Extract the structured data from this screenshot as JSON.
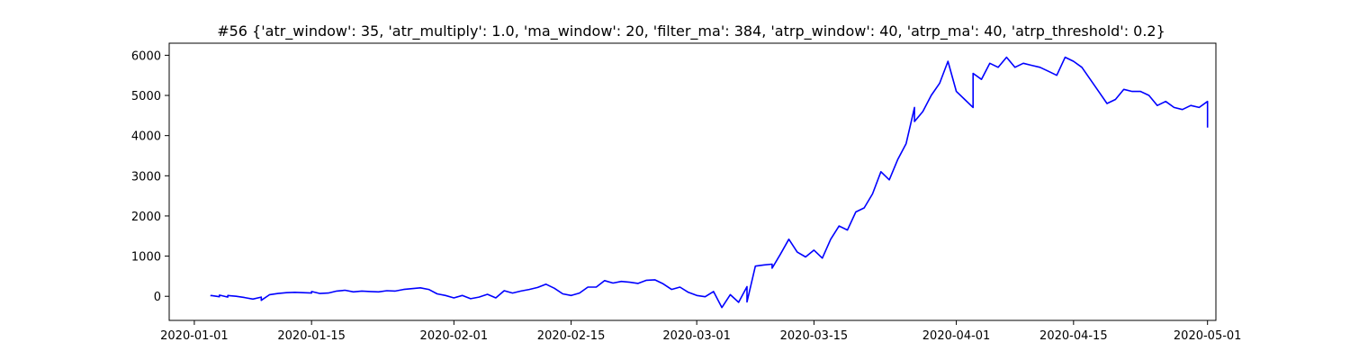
{
  "chart_data": {
    "type": "line",
    "title": "#56 {'atr_window': 35, 'atr_multiply': 1.0, 'ma_window': 20, 'filter_ma': 384, 'atrp_window': 40, 'atrp_ma': 40, 'atrp_threshold': 0.2}",
    "xlabel": "",
    "ylabel": "",
    "x_axis": "date",
    "xlim": [
      "2019-12-29",
      "2020-05-02"
    ],
    "ylim": [
      -600,
      6300
    ],
    "grid": false,
    "xticks": [
      "2020-01-01",
      "2020-01-15",
      "2020-02-01",
      "2020-02-15",
      "2020-03-01",
      "2020-03-15",
      "2020-04-01",
      "2020-04-15",
      "2020-05-01"
    ],
    "yticks": [
      0,
      1000,
      2000,
      3000,
      4000,
      5000,
      6000
    ],
    "series": [
      {
        "color": "#0000ff",
        "points": [
          [
            "2020-01-03",
            0
          ],
          [
            "2020-01-03",
            20
          ],
          [
            "2020-01-04",
            -10
          ],
          [
            "2020-01-04",
            30
          ],
          [
            "2020-01-05",
            -20
          ],
          [
            "2020-01-05",
            20
          ],
          [
            "2020-01-06",
            0
          ],
          [
            "2020-01-07",
            -30
          ],
          [
            "2020-01-08",
            -70
          ],
          [
            "2020-01-09",
            -20
          ],
          [
            "2020-01-09",
            -100
          ],
          [
            "2020-01-10",
            40
          ],
          [
            "2020-01-11",
            70
          ],
          [
            "2020-01-12",
            90
          ],
          [
            "2020-01-13",
            100
          ],
          [
            "2020-01-14",
            90
          ],
          [
            "2020-01-15",
            80
          ],
          [
            "2020-01-15",
            120
          ],
          [
            "2020-01-16",
            70
          ],
          [
            "2020-01-17",
            80
          ],
          [
            "2020-01-18",
            130
          ],
          [
            "2020-01-19",
            150
          ],
          [
            "2020-01-20",
            110
          ],
          [
            "2020-01-21",
            130
          ],
          [
            "2020-01-22",
            120
          ],
          [
            "2020-01-23",
            110
          ],
          [
            "2020-01-24",
            140
          ],
          [
            "2020-01-25",
            130
          ],
          [
            "2020-01-26",
            170
          ],
          [
            "2020-01-27",
            190
          ],
          [
            "2020-01-28",
            210
          ],
          [
            "2020-01-29",
            170
          ],
          [
            "2020-01-30",
            60
          ],
          [
            "2020-01-31",
            20
          ],
          [
            "2020-02-01",
            -40
          ],
          [
            "2020-02-02",
            20
          ],
          [
            "2020-02-03",
            -60
          ],
          [
            "2020-02-04",
            -20
          ],
          [
            "2020-02-05",
            50
          ],
          [
            "2020-02-06",
            -40
          ],
          [
            "2020-02-07",
            140
          ],
          [
            "2020-02-08",
            80
          ],
          [
            "2020-02-09",
            130
          ],
          [
            "2020-02-10",
            170
          ],
          [
            "2020-02-11",
            220
          ],
          [
            "2020-02-12",
            300
          ],
          [
            "2020-02-13",
            200
          ],
          [
            "2020-02-14",
            60
          ],
          [
            "2020-02-15",
            20
          ],
          [
            "2020-02-16",
            80
          ],
          [
            "2020-02-17",
            230
          ],
          [
            "2020-02-18",
            230
          ],
          [
            "2020-02-19",
            390
          ],
          [
            "2020-02-20",
            330
          ],
          [
            "2020-02-21",
            370
          ],
          [
            "2020-02-22",
            350
          ],
          [
            "2020-02-23",
            320
          ],
          [
            "2020-02-24",
            400
          ],
          [
            "2020-02-25",
            410
          ],
          [
            "2020-02-26",
            310
          ],
          [
            "2020-02-27",
            170
          ],
          [
            "2020-02-28",
            230
          ],
          [
            "2020-02-29",
            100
          ],
          [
            "2020-03-01",
            20
          ],
          [
            "2020-03-02",
            -10
          ],
          [
            "2020-03-03",
            120
          ],
          [
            "2020-03-04",
            -280
          ],
          [
            "2020-03-05",
            40
          ],
          [
            "2020-03-06",
            -150
          ],
          [
            "2020-03-07",
            240
          ],
          [
            "2020-03-07",
            -140
          ],
          [
            "2020-03-08",
            750
          ],
          [
            "2020-03-09",
            780
          ],
          [
            "2020-03-10",
            800
          ],
          [
            "2020-03-10",
            700
          ],
          [
            "2020-03-11",
            1050
          ],
          [
            "2020-03-12",
            1420
          ],
          [
            "2020-03-13",
            1100
          ],
          [
            "2020-03-14",
            980
          ],
          [
            "2020-03-15",
            1150
          ],
          [
            "2020-03-16",
            950
          ],
          [
            "2020-03-17",
            1420
          ],
          [
            "2020-03-18",
            1750
          ],
          [
            "2020-03-19",
            1650
          ],
          [
            "2020-03-20",
            2100
          ],
          [
            "2020-03-21",
            2200
          ],
          [
            "2020-03-22",
            2550
          ],
          [
            "2020-03-23",
            3100
          ],
          [
            "2020-03-24",
            2900
          ],
          [
            "2020-03-25",
            3400
          ],
          [
            "2020-03-26",
            3800
          ],
          [
            "2020-03-27",
            4700
          ],
          [
            "2020-03-27",
            4350
          ],
          [
            "2020-03-28",
            4600
          ],
          [
            "2020-03-29",
            5000
          ],
          [
            "2020-03-30",
            5300
          ],
          [
            "2020-03-31",
            5850
          ],
          [
            "2020-04-01",
            5100
          ],
          [
            "2020-04-02",
            4900
          ],
          [
            "2020-04-03",
            4700
          ],
          [
            "2020-04-03",
            5550
          ],
          [
            "2020-04-04",
            5400
          ],
          [
            "2020-04-05",
            5800
          ],
          [
            "2020-04-06",
            5700
          ],
          [
            "2020-04-07",
            5950
          ],
          [
            "2020-04-08",
            5700
          ],
          [
            "2020-04-09",
            5800
          ],
          [
            "2020-04-10",
            5750
          ],
          [
            "2020-04-11",
            5700
          ],
          [
            "2020-04-12",
            5600
          ],
          [
            "2020-04-13",
            5500
          ],
          [
            "2020-04-14",
            5950
          ],
          [
            "2020-04-15",
            5850
          ],
          [
            "2020-04-16",
            5700
          ],
          [
            "2020-04-17",
            5400
          ],
          [
            "2020-04-18",
            5100
          ],
          [
            "2020-04-19",
            4800
          ],
          [
            "2020-04-20",
            4900
          ],
          [
            "2020-04-21",
            5150
          ],
          [
            "2020-04-22",
            5100
          ],
          [
            "2020-04-23",
            5100
          ],
          [
            "2020-04-24",
            5000
          ],
          [
            "2020-04-25",
            4750
          ],
          [
            "2020-04-26",
            4850
          ],
          [
            "2020-04-27",
            4700
          ],
          [
            "2020-04-28",
            4650
          ],
          [
            "2020-04-29",
            4750
          ],
          [
            "2020-04-30",
            4700
          ],
          [
            "2020-05-01",
            4850
          ],
          [
            "2020-05-01",
            4600
          ],
          [
            "2020-05-01",
            4300
          ],
          [
            "2020-05-01",
            4200
          ]
        ]
      }
    ]
  }
}
